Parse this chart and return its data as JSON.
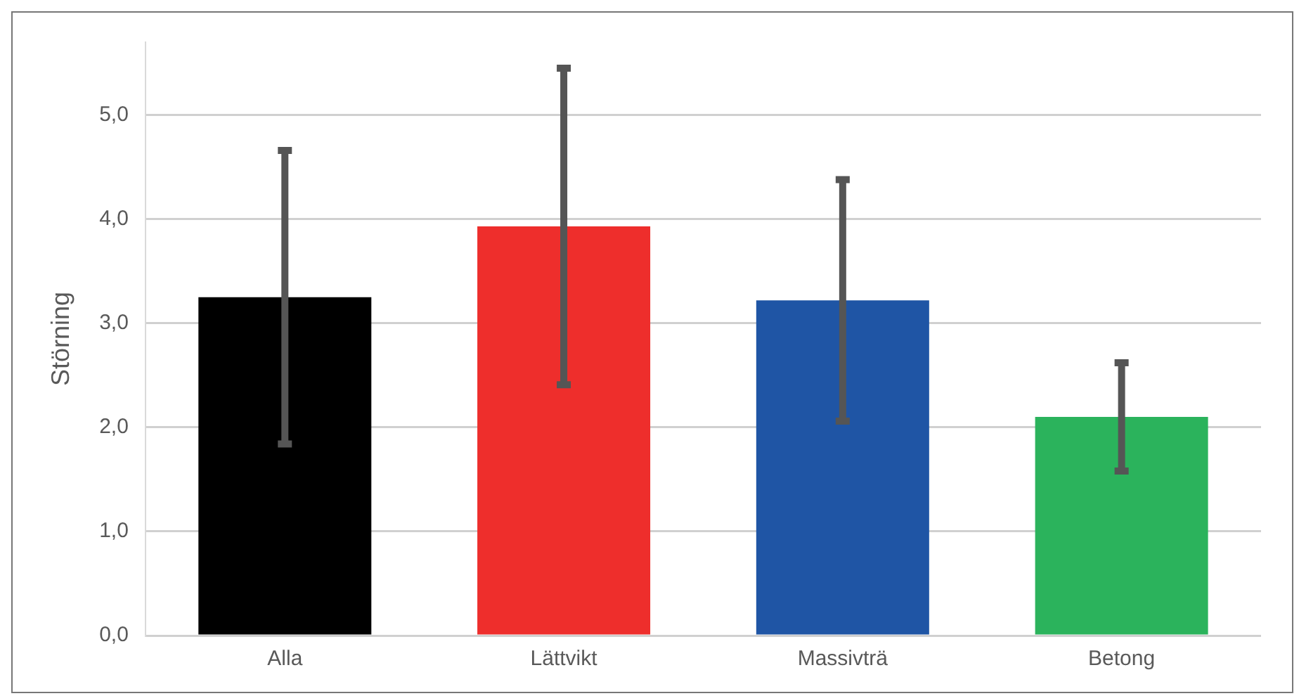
{
  "chart_data": {
    "type": "bar",
    "ylabel": "Störning",
    "categories": [
      "Alla",
      "Lättvikt",
      "Massivträ",
      "Betong"
    ],
    "values": [
      3.25,
      3.93,
      3.22,
      2.1
    ],
    "colors": [
      "#000000",
      "#ee2e2c",
      "#1f55a5",
      "#2bb35c"
    ],
    "errors": [
      1.41,
      1.52,
      1.16,
      0.52
    ],
    "ylim": [
      0,
      5.7
    ],
    "yticks": [
      {
        "value": 0,
        "label": "0,0"
      },
      {
        "value": 1,
        "label": "1,0"
      },
      {
        "value": 2,
        "label": "2,0"
      },
      {
        "value": 3,
        "label": "3,0"
      },
      {
        "value": 4,
        "label": "4,0"
      },
      {
        "value": 5,
        "label": "5,0"
      }
    ],
    "grid": "y"
  }
}
